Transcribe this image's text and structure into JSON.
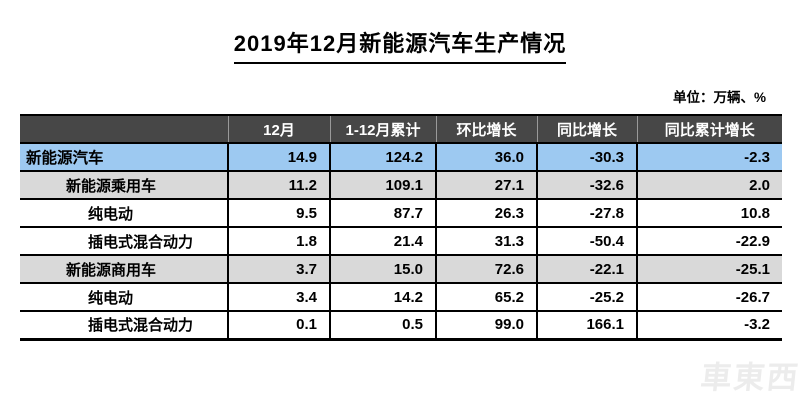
{
  "title": "2019年12月新能源汽车生产情况",
  "unit_note": "单位：万辆、%",
  "watermark_text": "車東西",
  "colors": {
    "header_bg": "#474747",
    "header_text": "#ffffff",
    "highlight_row_bg": "#9dc9f1",
    "group_row_bg": "#d9d9d9",
    "body_row_bg": "#ffffff",
    "grid_border": "#000000",
    "watermark": "#ececec"
  },
  "chart_data": {
    "type": "table",
    "title": "2019年12月新能源汽车生产情况",
    "unit": "万辆、%",
    "columns": [
      "",
      "12月",
      "1-12月累计",
      "环比增长",
      "同比增长",
      "同比累计增长"
    ],
    "rows": [
      {
        "label": "新能源汽车",
        "indent": 0,
        "style": "highlight",
        "values": [
          "14.9",
          "124.2",
          "36.0",
          "-30.3",
          "-2.3"
        ]
      },
      {
        "label": "新能源乘用车",
        "indent": 1,
        "style": "gray",
        "values": [
          "11.2",
          "109.1",
          "27.1",
          "-32.6",
          "2.0"
        ]
      },
      {
        "label": "纯电动",
        "indent": 2,
        "style": "white",
        "values": [
          "9.5",
          "87.7",
          "26.3",
          "-27.8",
          "10.8"
        ]
      },
      {
        "label": "插电式混合动力",
        "indent": 2,
        "style": "white",
        "values": [
          "1.8",
          "21.4",
          "31.3",
          "-50.4",
          "-22.9"
        ]
      },
      {
        "label": "新能源商用车",
        "indent": 1,
        "style": "gray",
        "values": [
          "3.7",
          "15.0",
          "72.6",
          "-22.1",
          "-25.1"
        ]
      },
      {
        "label": "纯电动",
        "indent": 2,
        "style": "white",
        "values": [
          "3.4",
          "14.2",
          "65.2",
          "-25.2",
          "-26.7"
        ]
      },
      {
        "label": "插电式混合动力",
        "indent": 2,
        "style": "white",
        "values": [
          "0.1",
          "0.5",
          "99.0",
          "166.1",
          "-3.2"
        ]
      }
    ]
  }
}
